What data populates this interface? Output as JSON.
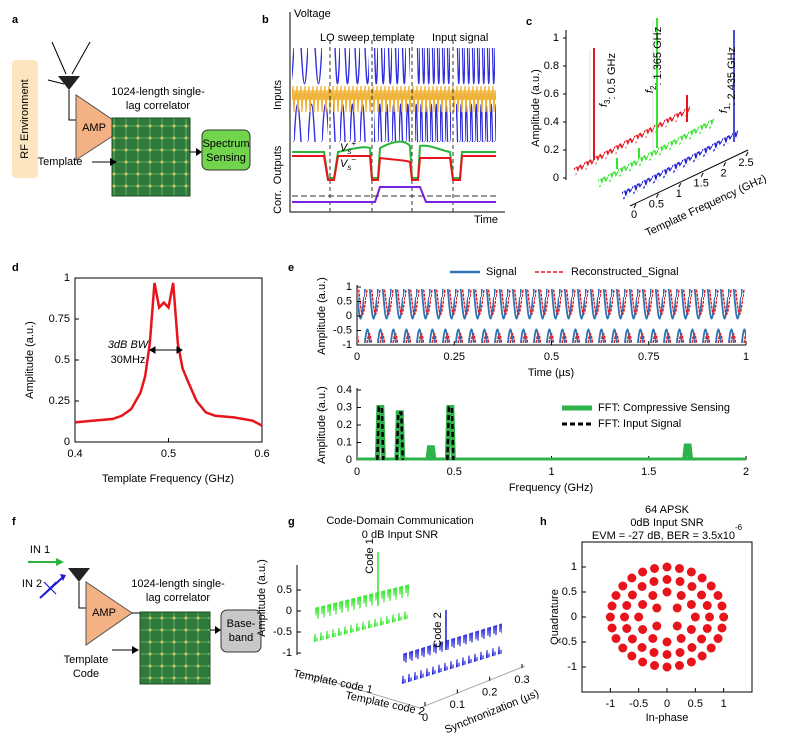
{
  "panels": [
    "a",
    "b",
    "c",
    "d",
    "e",
    "f",
    "g",
    "h"
  ],
  "a": {
    "source": "RF Environment",
    "device": [
      "1024-length single-",
      "lag correlator"
    ],
    "amp": "AMP",
    "template": "Template",
    "output": [
      "Spectrum",
      "Sensing"
    ]
  },
  "b": {
    "y_label": "Voltage",
    "legend": [
      "LO sweep template",
      "Input signal"
    ],
    "rows": [
      "Inputs",
      "Outputs",
      "Corr."
    ],
    "x_label": "Time",
    "vs_plus": [
      "V",
      "s",
      "+"
    ],
    "vs_minus": [
      "V",
      "s",
      "−"
    ]
  },
  "c": {
    "y_label": "Amplitude (a.u.)",
    "ylim": [
      0,
      1
    ],
    "yticks": [
      0,
      0.2,
      0.4,
      0.6,
      0.8,
      1
    ],
    "x_label": "Template Frequency (GHz)",
    "xlim": [
      0,
      2.5
    ],
    "xticks": [
      0,
      0.5,
      1,
      1.5,
      2,
      2.5
    ],
    "tones": [
      [
        "f",
        "3",
        ": 0.5 GHz"
      ],
      [
        "f",
        "2",
        ": 1.365 GHz"
      ],
      [
        "f",
        "1",
        ": 2.435 GHz"
      ]
    ]
  },
  "e_time": {
    "legend": [
      "Signal",
      "Reconstructed_Signal"
    ],
    "x_label": "Time (µs)",
    "y_label": "Amplitude (a.u.)",
    "xlim": [
      0,
      1
    ],
    "xticks": [
      0,
      0.25,
      0.5,
      0.75,
      1
    ],
    "ylim": [
      -1,
      1
    ],
    "yticks": [
      -1,
      -0.5,
      0,
      0.5,
      1
    ]
  },
  "f": {
    "inputs": [
      "IN 1",
      "IN 2"
    ],
    "amp": "AMP",
    "device": [
      "1024-length single-",
      "lag correlator"
    ],
    "template": [
      "Template",
      "Code"
    ],
    "output": [
      "Base-",
      "band"
    ]
  },
  "g": {
    "title": [
      "Code-Domain Communication",
      "0 dB Input SNR"
    ],
    "y_label": "Amplitude (a.u.)",
    "ylim": [
      -1,
      0.5
    ],
    "yticks": [
      -1,
      -0.5,
      0,
      0.5
    ],
    "codes": [
      "Code 1",
      "Code 2"
    ],
    "templates": [
      "Template code 1",
      "Template code 2"
    ],
    "x_label": "Synchronization (µs)",
    "xlim": [
      0,
      0.3
    ],
    "xticks": [
      0,
      0.1,
      0.2,
      0.3
    ]
  },
  "chart_data": [
    {
      "type": "line",
      "x_label": "Template Frequency (GHz)",
      "y_label": "Amplitude (a.u.)",
      "annotation": [
        "3dB BW",
        "30MHz"
      ],
      "color": "#e8141b",
      "x": [
        0.4,
        0.42,
        0.44,
        0.45,
        0.46,
        0.47,
        0.475,
        0.48,
        0.485,
        0.49,
        0.495,
        0.5,
        0.505,
        0.51,
        0.515,
        0.52,
        0.53,
        0.54,
        0.55,
        0.57,
        0.59,
        0.6
      ],
      "values": [
        0.12,
        0.13,
        0.14,
        0.16,
        0.2,
        0.3,
        0.4,
        0.6,
        0.97,
        0.82,
        0.85,
        0.82,
        0.97,
        0.6,
        0.45,
        0.38,
        0.25,
        0.18,
        0.16,
        0.15,
        0.13,
        0.1
      ],
      "xlim": [
        0.4,
        0.6
      ],
      "ylim": [
        0,
        1
      ],
      "xticks": [
        0.4,
        0.5,
        0.6
      ],
      "yticks": [
        0,
        0.25,
        0.5,
        0.75,
        1
      ]
    },
    {
      "type": "line",
      "x_label": "Frequency (GHz)",
      "y_label": "Amplitude (a.u.)",
      "xlim": [
        0,
        2
      ],
      "ylim": [
        0,
        0.4
      ],
      "xticks": [
        0,
        0.5,
        1,
        1.5,
        2
      ],
      "yticks": [
        0,
        0.1,
        0.2,
        0.3,
        0.4
      ],
      "series": [
        {
          "name": "FFT: Compressive Sensing",
          "color": "#2db34a",
          "x": [
            0.12,
            0.22,
            0.38,
            0.48,
            1.7
          ],
          "values": [
            0.3,
            0.27,
            0.07,
            0.3,
            0.08
          ]
        },
        {
          "name": "FFT: Input Signal",
          "color": "#000000",
          "x": [
            0.12,
            0.22,
            0.48
          ],
          "values": [
            0.3,
            0.27,
            0.3
          ]
        }
      ]
    },
    {
      "type": "scatter",
      "title": [
        "64 APSK",
        "0dB Input SNR"
      ],
      "metrics": "EVM = -27 dB, BER = 3.5x10",
      "metrics_exp": "-6",
      "x_label": "In-phase",
      "y_label": "Quadrature",
      "color": "#e8141b",
      "xlim": [
        -1.5,
        1.5
      ],
      "ylim": [
        -1.5,
        1.5
      ],
      "xticks": [
        -1,
        -0.5,
        0,
        0.5,
        1
      ],
      "yticks": [
        -1,
        -0.5,
        0,
        0.5,
        1
      ],
      "x": [
        0.18,
        -0.18,
        -0.18,
        0.18,
        0.5,
        0.43,
        0.25,
        0,
        -0.25,
        -0.43,
        -0.5,
        -0.43,
        -0.25,
        0,
        0.25,
        0.43,
        0.75,
        0.71,
        0.61,
        0.44,
        0.23,
        0,
        -0.23,
        -0.44,
        -0.61,
        -0.71,
        -0.75,
        -0.71,
        -0.61,
        -0.44,
        -0.23,
        0,
        0.23,
        0.44,
        0.61,
        0.71,
        1,
        0.97,
        0.9,
        0.78,
        0.62,
        0.43,
        0.22,
        0,
        -0.22,
        -0.43,
        -0.62,
        -0.78,
        -0.9,
        -0.97,
        -1,
        -0.97,
        -0.9,
        -0.78,
        -0.62,
        -0.43,
        -0.22,
        0,
        0.22,
        0.43,
        0.62,
        0.78,
        0.9,
        0.97
      ],
      "y": [
        0.18,
        0.18,
        -0.18,
        -0.18,
        0,
        0.25,
        0.43,
        0.5,
        0.43,
        0.25,
        0,
        -0.25,
        -0.43,
        -0.5,
        -0.43,
        -0.25,
        0,
        0.23,
        0.44,
        0.61,
        0.71,
        0.75,
        0.71,
        0.61,
        0.44,
        0.23,
        0,
        -0.23,
        -0.44,
        -0.61,
        -0.71,
        -0.75,
        -0.71,
        -0.61,
        -0.44,
        -0.23,
        0,
        0.22,
        0.43,
        0.62,
        0.78,
        0.9,
        0.97,
        1,
        0.97,
        0.9,
        0.78,
        0.62,
        0.43,
        0.22,
        0,
        -0.22,
        -0.43,
        -0.62,
        -0.78,
        -0.9,
        -0.97,
        -1,
        -0.97,
        -0.9,
        -0.78,
        -0.62,
        -0.43,
        -0.22
      ]
    }
  ]
}
